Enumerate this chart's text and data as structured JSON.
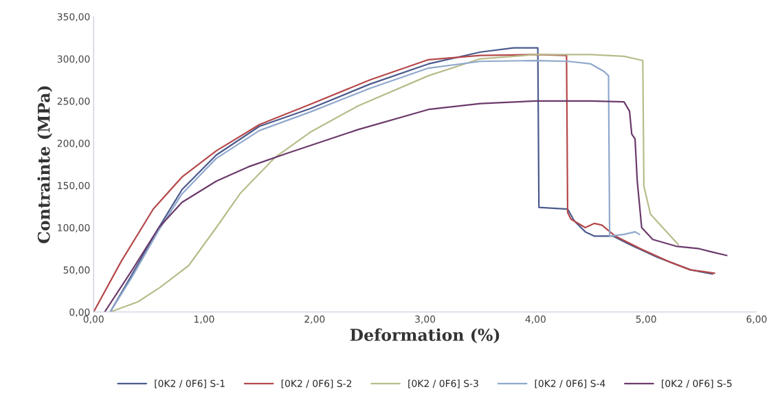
{
  "chart_data": {
    "type": "line",
    "xlabel": "Deformation (%)",
    "ylabel": "Contrainte (MPa)",
    "xlim": [
      0,
      6
    ],
    "ylim": [
      0,
      350
    ],
    "xticks": [
      {
        "value": 0,
        "label": "0,00"
      },
      {
        "value": 1,
        "label": "1,00"
      },
      {
        "value": 2,
        "label": "2,00"
      },
      {
        "value": 3,
        "label": "3,00"
      },
      {
        "value": 4,
        "label": "4,00"
      },
      {
        "value": 5,
        "label": "5,00"
      },
      {
        "value": 6,
        "label": "6,00"
      }
    ],
    "yticks": [
      {
        "value": 0,
        "label": "0,00"
      },
      {
        "value": 50,
        "label": "50,00"
      },
      {
        "value": 100,
        "label": "100,00"
      },
      {
        "value": 150,
        "label": "150,00"
      },
      {
        "value": 200,
        "label": "200,00"
      },
      {
        "value": 250,
        "label": "250,00"
      },
      {
        "value": 300,
        "label": "300,00"
      },
      {
        "value": 350,
        "label": "350,00"
      }
    ],
    "grid": false,
    "legend": "bottom",
    "line_style": "solid",
    "marker": "none",
    "series": [
      {
        "name": "[0K2 / 0F6] S-1",
        "color": "#4a5a8c",
        "x": [
          0.15,
          0.35,
          0.59,
          0.8,
          1.11,
          1.5,
          1.96,
          2.5,
          3.03,
          3.5,
          3.8,
          4.02,
          4.03,
          4.29,
          4.35,
          4.45,
          4.53,
          4.7,
          4.85,
          5.1,
          5.4,
          5.6
        ],
        "values": [
          0,
          45,
          100,
          145,
          186,
          220,
          241,
          270,
          294,
          308,
          313,
          313,
          124,
          122,
          108,
          95,
          90,
          90,
          80,
          65,
          50,
          45
        ]
      },
      {
        "name": "[0K2 / 0F6] S-2",
        "color": "#b5484a",
        "x": [
          0.0,
          0.25,
          0.54,
          0.8,
          1.11,
          1.5,
          1.96,
          2.5,
          3.03,
          3.5,
          4.0,
          4.28,
          4.29,
          4.32,
          4.45,
          4.53,
          4.6,
          4.72,
          4.95,
          5.2,
          5.4,
          5.62
        ],
        "values": [
          0,
          60,
          122,
          160,
          191,
          222,
          246,
          275,
          299,
          304,
          305,
          304,
          118,
          110,
          100,
          105,
          103,
          90,
          75,
          60,
          50,
          46
        ]
      },
      {
        "name": "[0K2 / 0F6] S-3",
        "color": "#b8bc8a",
        "x": [
          0.15,
          0.4,
          0.6,
          0.86,
          1.11,
          1.33,
          1.64,
          1.96,
          2.39,
          3.03,
          3.5,
          4.0,
          4.5,
          4.8,
          4.97,
          4.98,
          5.04,
          5.29
        ],
        "values": [
          0,
          12,
          29,
          55,
          100,
          141,
          183,
          213,
          244,
          280,
          300,
          305,
          305,
          303,
          298,
          149,
          116,
          80
        ]
      },
      {
        "name": "[0K2 / 0F6] S-4",
        "color": "#8fa8cc",
        "x": [
          0.15,
          0.35,
          0.59,
          0.8,
          1.11,
          1.5,
          1.96,
          2.5,
          3.03,
          3.5,
          4.0,
          4.3,
          4.5,
          4.62,
          4.66,
          4.67,
          4.8,
          4.9,
          4.94
        ],
        "values": [
          0,
          42,
          97,
          140,
          182,
          215,
          237,
          265,
          289,
          297,
          298,
          297,
          294,
          285,
          280,
          90,
          92,
          95,
          92
        ]
      },
      {
        "name": "[0K2 / 0F6] S-5",
        "color": "#6b3a6b",
        "x": [
          0.1,
          0.35,
          0.59,
          0.8,
          1.11,
          1.4,
          1.75,
          2.39,
          3.03,
          3.5,
          4.0,
          4.5,
          4.8,
          4.85,
          4.87,
          4.9,
          4.92,
          4.96,
          5.06,
          5.27,
          5.48,
          5.6,
          5.73
        ],
        "values": [
          0,
          50,
          100,
          130,
          155,
          172,
          188,
          216,
          240,
          247,
          250,
          250,
          249,
          238,
          211,
          205,
          155,
          100,
          86,
          78,
          75,
          71,
          67
        ]
      }
    ]
  }
}
